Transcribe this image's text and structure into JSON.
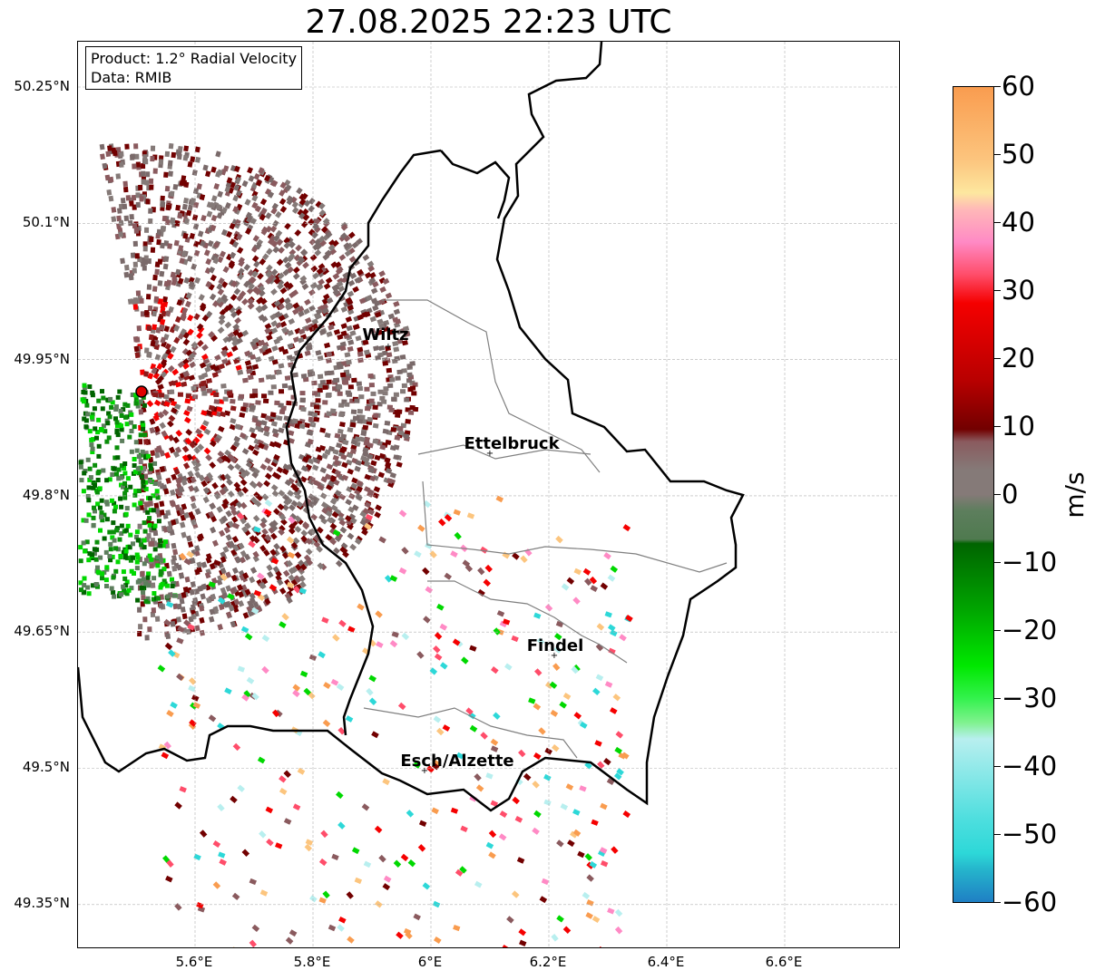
{
  "figure": {
    "title": "27.08.2025 22:23 UTC"
  },
  "info_box": {
    "product_line": "Product: 1.2° Radial Velocity",
    "data_line": "Data: RMIB"
  },
  "axes": {
    "lat_ticks": [
      "50.25°N",
      "50.1°N",
      "49.95°N",
      "49.8°N",
      "49.65°N",
      "49.5°N",
      "49.35°N"
    ],
    "lon_ticks": [
      "5.6°E",
      "5.8°E",
      "6°E",
      "6.2°E",
      "6.4°E",
      "6.6°E"
    ]
  },
  "colorbar": {
    "label": "m/s",
    "ticks": [
      "60",
      "50",
      "40",
      "30",
      "20",
      "10",
      "0",
      "−10",
      "−20",
      "−30",
      "−40",
      "−50",
      "−60"
    ],
    "min": -60,
    "max": 60,
    "colors": {
      "high_orange": "#f99c4f",
      "light_orange": "#fcc57e",
      "pale_yellow": "#fde79f",
      "pink": "#ff8ac5",
      "red_pink": "#ff4d6a",
      "red": "#f50000",
      "dark_red": "#720000",
      "mauve": "#8a5a5e",
      "grey": "#857a78",
      "grey_green": "#5d7e5d",
      "dark_green": "#006400",
      "green": "#00d800",
      "light_green": "#80f28f",
      "pale_cyan": "#b8efef",
      "cyan": "#2dd8d8",
      "blue": "#1f7fc4"
    }
  },
  "places": [
    {
      "name": "Wiltz"
    },
    {
      "name": "Ettelbruck"
    },
    {
      "name": "Findel"
    },
    {
      "name": "Esch/Alzette"
    }
  ],
  "radar": {
    "site_color": "#e00000"
  }
}
